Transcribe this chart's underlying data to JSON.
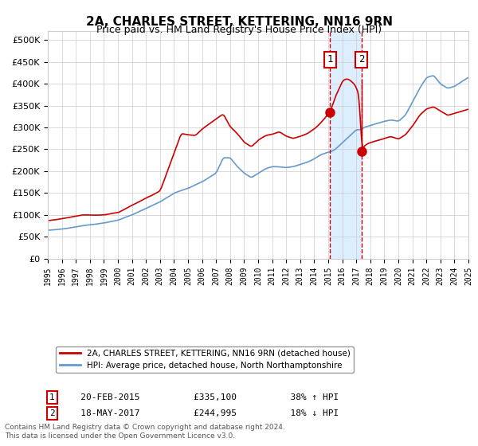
{
  "title": "2A, CHARLES STREET, KETTERING, NN16 9RN",
  "subtitle": "Price paid vs. HM Land Registry's House Price Index (HPI)",
  "legend_line1": "2A, CHARLES STREET, KETTERING, NN16 9RN (detached house)",
  "legend_line2": "HPI: Average price, detached house, North Northamptonshire",
  "transaction1_label": "1",
  "transaction1_date": "20-FEB-2015",
  "transaction1_price": 335100,
  "transaction1_hpi": "38% ↑ HPI",
  "transaction2_label": "2",
  "transaction2_date": "18-MAY-2017",
  "transaction2_price": 244995,
  "transaction2_hpi": "18% ↓ HPI",
  "footer": "Contains HM Land Registry data © Crown copyright and database right 2024.\nThis data is licensed under the Open Government Licence v3.0.",
  "red_color": "#cc0000",
  "blue_color": "#6699cc",
  "highlight_color": "#ddeeff",
  "grid_color": "#cccccc",
  "box_color": "#cc0000",
  "ylim": [
    0,
    520000
  ],
  "yticks": [
    0,
    50000,
    100000,
    150000,
    200000,
    250000,
    300000,
    350000,
    400000,
    450000,
    500000
  ],
  "x_start_year": 1995,
  "x_end_year": 2025,
  "transaction1_year": 2015.13,
  "transaction2_year": 2017.38
}
